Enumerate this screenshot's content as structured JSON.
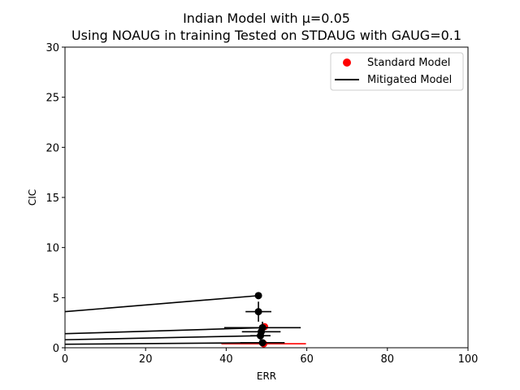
{
  "chart_data": {
    "type": "scatter",
    "title": "Indian Model with μ=0.05",
    "subtitle": "Using NOAUG in training Tested on STDAUG with GAUG=0.1",
    "xlabel": "ERR",
    "ylabel": "CIC",
    "xlim": [
      0,
      100
    ],
    "ylim": [
      0,
      30
    ],
    "x_ticks": [
      "0",
      "20",
      "40",
      "60",
      "80",
      "100"
    ],
    "y_ticks": [
      "0",
      "5",
      "10",
      "15",
      "20",
      "25",
      "30"
    ],
    "grid": false,
    "legend_position": "top-right",
    "series": [
      {
        "name": "Standard Model",
        "color": "#ff0000",
        "marker": "circle",
        "points": [
          {
            "x": 49.5,
            "y": 2.1,
            "xerr": 0.8,
            "yerr": 0.3
          },
          {
            "x": 49.3,
            "y": 0.4,
            "xerr": 10.5,
            "yerr": 0.1
          }
        ]
      },
      {
        "name": "Mitigated Model",
        "color": "#000000",
        "marker": "circle",
        "points": [
          {
            "x": 48.0,
            "y": 5.2,
            "xerr": 0.3,
            "yerr": 0.2
          },
          {
            "x": 48.0,
            "y": 3.6,
            "xerr": 3.2,
            "yerr": 1.0
          },
          {
            "x": 49.0,
            "y": 2.0,
            "xerr": 9.5,
            "yerr": 0.6
          },
          {
            "x": 48.7,
            "y": 1.6,
            "xerr": 4.8,
            "yerr": 0.5
          },
          {
            "x": 48.5,
            "y": 1.2,
            "xerr": 2.5,
            "yerr": 0.4
          },
          {
            "x": 49.0,
            "y": 0.5,
            "xerr": 5.5,
            "yerr": 0.2
          }
        ],
        "lines": [
          {
            "from": [
              0,
              3.6
            ],
            "to": [
              48.0,
              5.2
            ]
          },
          {
            "from": [
              0,
              1.4
            ],
            "to": [
              49.0,
              2.0
            ]
          },
          {
            "from": [
              0,
              0.8
            ],
            "to": [
              48.5,
              1.2
            ]
          },
          {
            "from": [
              0,
              0.35
            ],
            "to": [
              49.0,
              0.5
            ]
          }
        ]
      }
    ]
  }
}
